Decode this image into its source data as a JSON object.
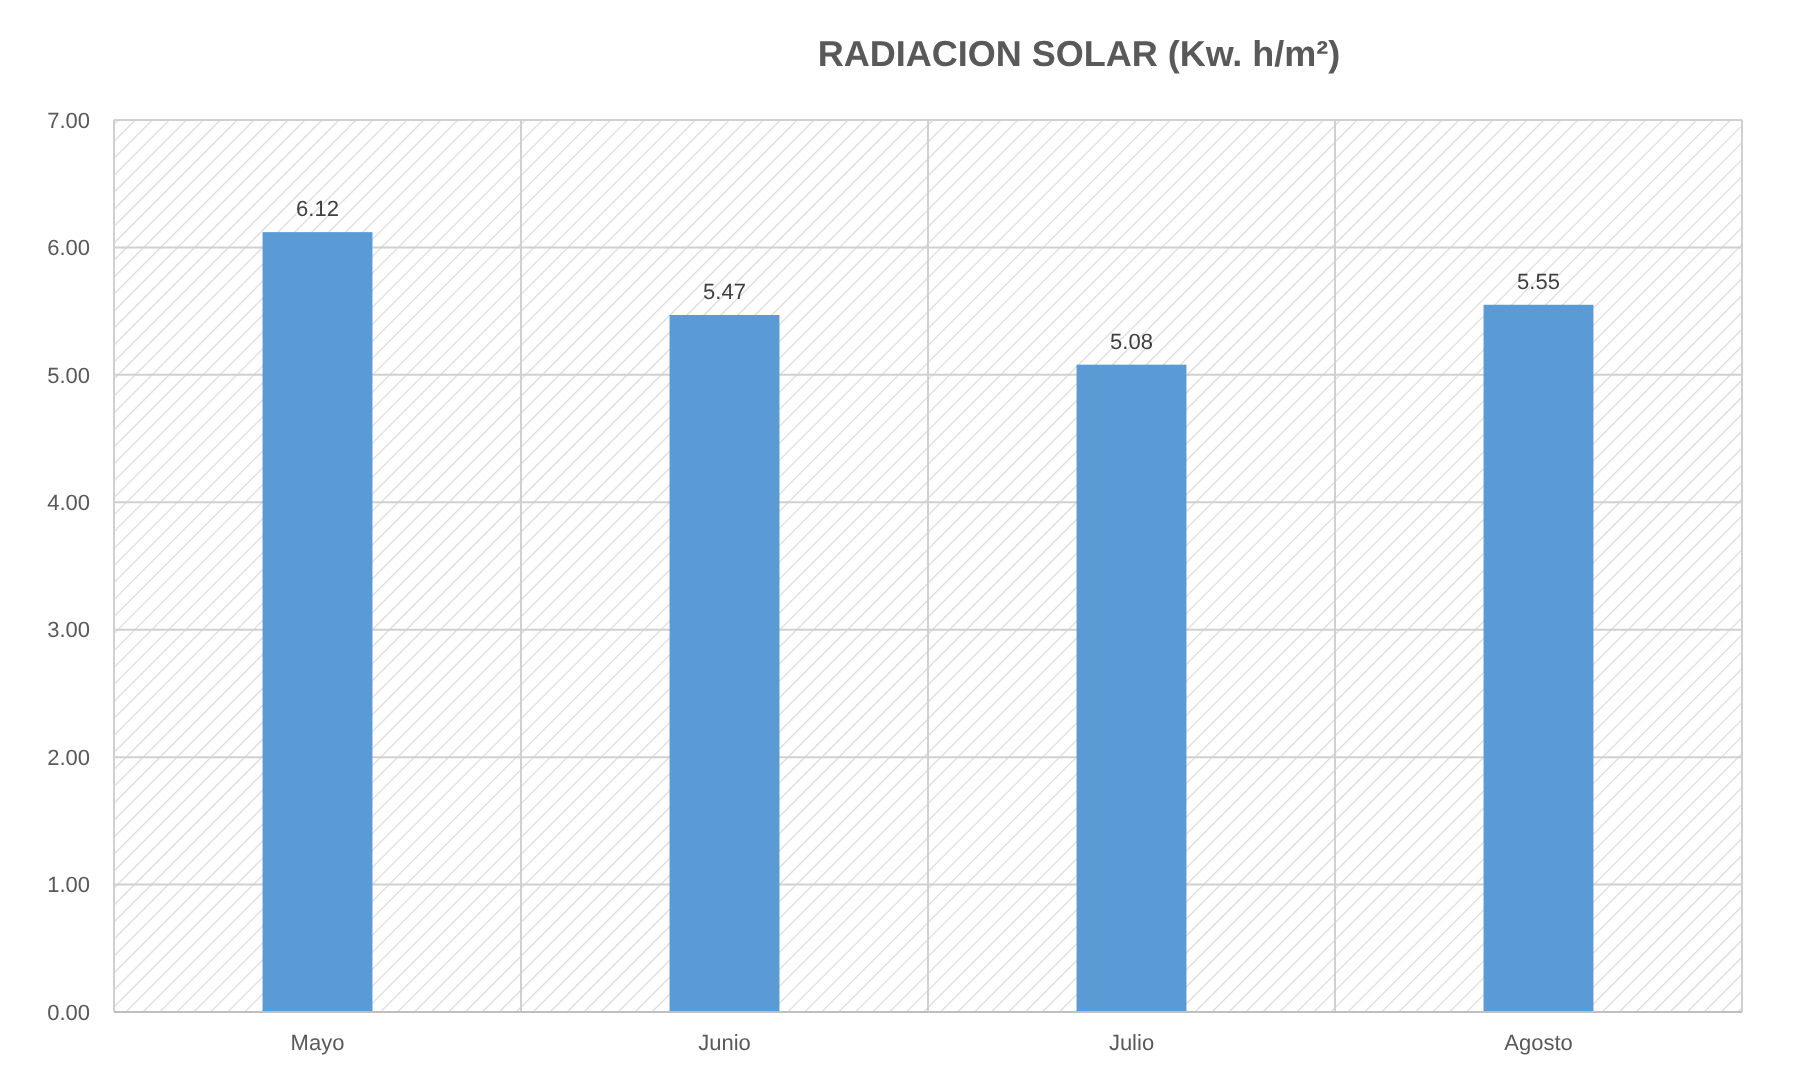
{
  "chart_data": {
    "type": "bar",
    "title": "RADIACION SOLAR  (Kw. h/m²)",
    "categories": [
      "Mayo",
      "Junio",
      "Julio",
      "Agosto"
    ],
    "values": [
      6.12,
      5.47,
      5.08,
      5.55
    ],
    "color": "#5b9bd5",
    "ylim": [
      0,
      7
    ],
    "yticks": [
      {
        "value": 0,
        "label": "0.00"
      },
      {
        "value": 1,
        "label": "1.00"
      },
      {
        "value": 2,
        "label": "2.00"
      },
      {
        "value": 3,
        "label": "3.00"
      },
      {
        "value": 4,
        "label": "4.00"
      },
      {
        "value": 5,
        "label": "5.00"
      },
      {
        "value": 6,
        "label": "6.00"
      },
      {
        "value": 7,
        "label": "7.00"
      }
    ],
    "grid": true,
    "data_labels": true
  }
}
